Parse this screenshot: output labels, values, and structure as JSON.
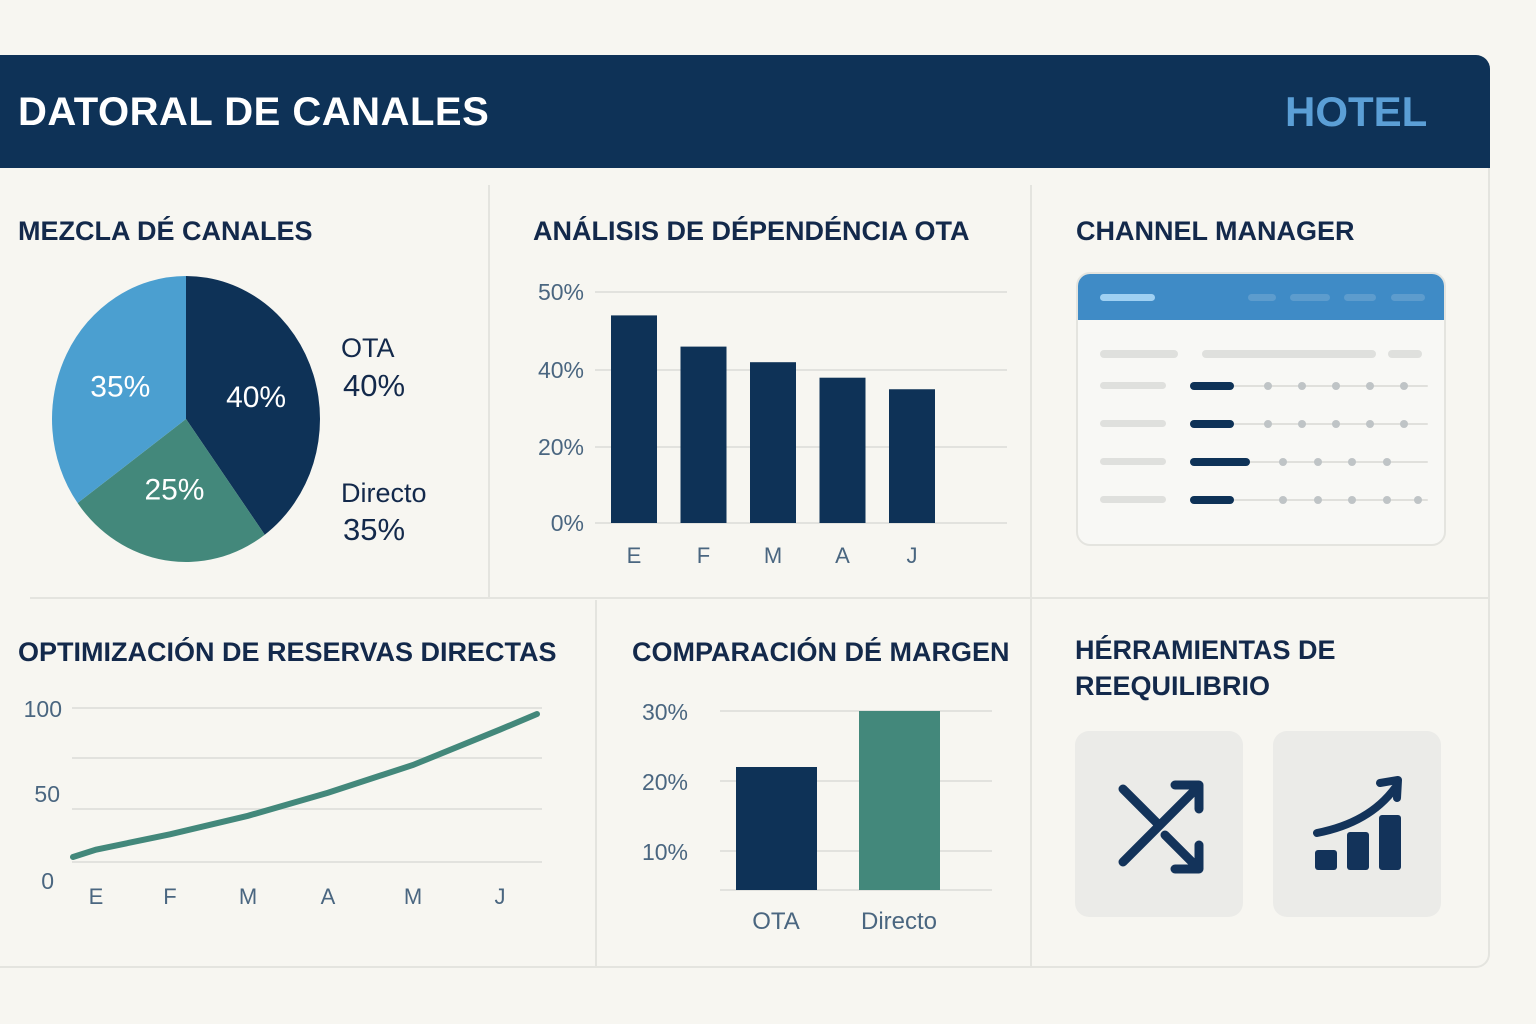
{
  "header": {
    "title": "DATORAL DE CANALES",
    "brand": "HOTEL"
  },
  "colors": {
    "navy": "#0e3257",
    "light_blue": "#4b9fd0",
    "green": "#43887b",
    "accent_blue": "#3f8bc6",
    "brand_text": "#5b9fd6"
  },
  "panels": {
    "channel_mix": {
      "title": "MEZCLA DÉ CANALES",
      "legend": [
        {
          "name": "OTA",
          "value": "40%"
        },
        {
          "name": "Directo",
          "value": "35%"
        }
      ]
    },
    "ota_dependency": {
      "title": "ANÁLISIS DE DÉPENDÉNCIA OTA"
    },
    "channel_manager": {
      "title": "CHANNEL MANAGER",
      "icon": "channel-manager-grid-illustration"
    },
    "direct_optimization": {
      "title": "OPTIMIZACIÓN DE RESERVAS DIRECTAS"
    },
    "margin_comparison": {
      "title": "COMPARACIÓN DÉ MARGEN"
    },
    "rebalancing_tools": {
      "title_line1": "HÉRRAMIENTAS DE",
      "title_line2": "REEQUILIBRIO",
      "tools": [
        {
          "icon": "shuffle-arrows-icon"
        },
        {
          "icon": "growth-chart-icon"
        }
      ]
    }
  },
  "chart_data": [
    {
      "type": "pie",
      "slices": [
        {
          "label": "40%",
          "value": 40,
          "color": "#0e3257"
        },
        {
          "label": "25%",
          "value": 25,
          "color": "#43887b"
        },
        {
          "label": "35%",
          "value": 35,
          "color": "#4b9fd0"
        }
      ]
    },
    {
      "type": "bar",
      "categories": [
        "E",
        "F",
        "M",
        "A",
        "J"
      ],
      "values": [
        47,
        43,
        41,
        38,
        35
      ],
      "yticks": [
        "0%",
        "20%",
        "40%",
        "50%"
      ],
      "ytick_values": [
        0,
        20,
        40,
        50
      ],
      "grid": true
    },
    {
      "type": "line",
      "categories": [
        "E",
        "F",
        "M",
        "A",
        "M",
        "J"
      ],
      "values": [
        8,
        18,
        30,
        45,
        63,
        86
      ],
      "yticks": [
        "0",
        "50",
        "100"
      ],
      "ylim": [
        0,
        100
      ],
      "grid": true,
      "color": "#43887b"
    },
    {
      "type": "bar",
      "categories": [
        "OTA",
        "Directo"
      ],
      "values": [
        22,
        30
      ],
      "colors": [
        "#0e3257",
        "#43887b"
      ],
      "yticks": [
        "10%",
        "20%",
        "30%"
      ],
      "grid": true
    }
  ]
}
